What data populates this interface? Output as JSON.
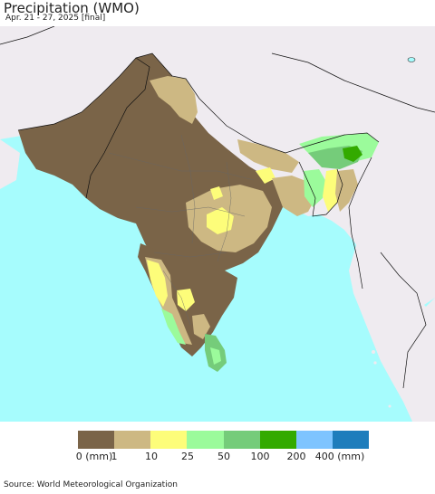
{
  "header": {
    "title": "Precipitation (WMO)",
    "subtitle": "Apr. 21 - 27, 2025 [final]"
  },
  "legend": {
    "colors": [
      "#7a6448",
      "#cdb883",
      "#fdfd7a",
      "#9bfb9b",
      "#75cc7a",
      "#33aa00",
      "#7ec4ff",
      "#1e7dbc"
    ],
    "ticks": [
      "0 (mm)",
      "1",
      "10",
      "25",
      "50",
      "100",
      "200",
      "400 (mm)"
    ]
  },
  "map_colors": {
    "ocean": "#a6fcfd",
    "outside_land": "#efebf0",
    "dry": "#7a6448",
    "trace": "#cdb883",
    "light": "#fdfd7a",
    "moderate": "#9bfb9b",
    "heavy": "#75cc7a",
    "very_heavy": "#33aa00"
  },
  "footer": {
    "source": "Source: World Meteorological Organization"
  }
}
